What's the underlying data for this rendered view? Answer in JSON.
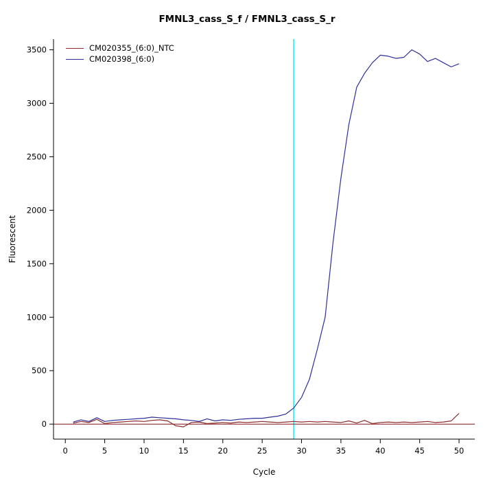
{
  "title": "FMNL3_cass_S_f / FMNL3_cass_S_r",
  "chart_data": {
    "type": "line",
    "title": "FMNL3_cass_S_f / FMNL3_cass_S_r",
    "xlabel": "Cycle",
    "ylabel": "Fluorescent",
    "xlim": [
      -1.5,
      52
    ],
    "ylim": [
      -140,
      3600
    ],
    "x_ticks": [
      0,
      5,
      10,
      15,
      20,
      25,
      30,
      35,
      40,
      45,
      50
    ],
    "y_ticks": [
      0,
      500,
      1000,
      1500,
      2000,
      2500,
      3000,
      3500
    ],
    "grid": false,
    "legend_position": "top-left",
    "x": [
      1,
      2,
      3,
      4,
      5,
      6,
      7,
      8,
      9,
      10,
      11,
      12,
      13,
      14,
      15,
      16,
      17,
      18,
      19,
      20,
      21,
      22,
      23,
      24,
      25,
      26,
      27,
      28,
      29,
      30,
      31,
      32,
      33,
      34,
      35,
      36,
      37,
      38,
      39,
      40,
      41,
      42,
      43,
      44,
      45,
      46,
      47,
      48,
      49,
      50
    ],
    "series": [
      {
        "name": "CM020355_(6:0)_NTC",
        "color": "#8b2a2a",
        "values": [
          10,
          25,
          15,
          45,
          5,
          15,
          20,
          25,
          30,
          25,
          35,
          40,
          30,
          -15,
          -25,
          15,
          20,
          5,
          10,
          15,
          10,
          20,
          15,
          20,
          25,
          20,
          15,
          20,
          25,
          20,
          25,
          20,
          25,
          20,
          15,
          30,
          10,
          35,
          5,
          15,
          20,
          15,
          20,
          15,
          20,
          25,
          15,
          20,
          30,
          100
        ]
      },
      {
        "name": "CM020398_(6:0)",
        "color": "#2e2e99",
        "values": [
          20,
          40,
          25,
          60,
          25,
          35,
          40,
          45,
          50,
          55,
          65,
          60,
          55,
          50,
          40,
          35,
          25,
          50,
          30,
          40,
          35,
          45,
          50,
          55,
          55,
          65,
          75,
          95,
          150,
          250,
          420,
          700,
          1000,
          1700,
          2300,
          2800,
          3150,
          3280,
          3380,
          3450,
          3440,
          3420,
          3430,
          3500,
          3460,
          3390,
          3420,
          3380,
          3340,
          3370
        ]
      }
    ],
    "baseline_hline": {
      "y": 0,
      "color": "#8b2a2a"
    },
    "threshold_vline": {
      "x": 29,
      "color": "#00eeee"
    }
  }
}
